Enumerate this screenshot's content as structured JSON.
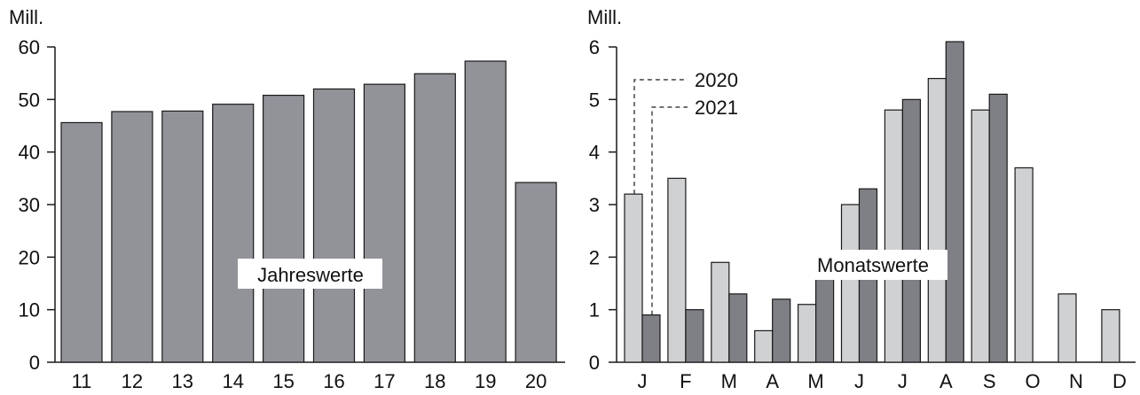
{
  "colors": {
    "yearly_bar": "#929399",
    "series_2020": "#d0d1d3",
    "series_2021": "#7f8086",
    "outline": "#1a1a1a",
    "background": "#ffffff"
  },
  "chart_data": [
    {
      "type": "bar",
      "ylabel": "Mill.",
      "ylim": [
        0,
        60
      ],
      "yticks": [
        0,
        10,
        20,
        30,
        40,
        50,
        60
      ],
      "categories": [
        "11",
        "12",
        "13",
        "14",
        "15",
        "16",
        "17",
        "18",
        "19",
        "20"
      ],
      "values": [
        45.6,
        47.7,
        47.8,
        49.1,
        50.8,
        52.0,
        52.9,
        54.9,
        57.3,
        34.2
      ],
      "annotation": "Jahreswerte",
      "grid": false
    },
    {
      "type": "bar",
      "ylabel": "Mill.",
      "ylim": [
        0,
        6
      ],
      "yticks": [
        0,
        1,
        2,
        3,
        4,
        5,
        6
      ],
      "categories": [
        "J",
        "F",
        "M",
        "A",
        "M",
        "J",
        "J",
        "A",
        "S",
        "O",
        "N",
        "D"
      ],
      "series": [
        {
          "name": "2020",
          "values": [
            3.2,
            3.5,
            1.9,
            0.6,
            1.1,
            3.0,
            4.8,
            5.4,
            4.8,
            3.7,
            1.3,
            1.0
          ]
        },
        {
          "name": "2021",
          "values": [
            0.9,
            1.0,
            1.3,
            1.2,
            1.65,
            3.3,
            5.0,
            6.1,
            5.1,
            null,
            null,
            null
          ]
        }
      ],
      "annotation": "Monatswerte",
      "legend": "callouts pointing to first month bars, top-left",
      "grid": false
    }
  ]
}
